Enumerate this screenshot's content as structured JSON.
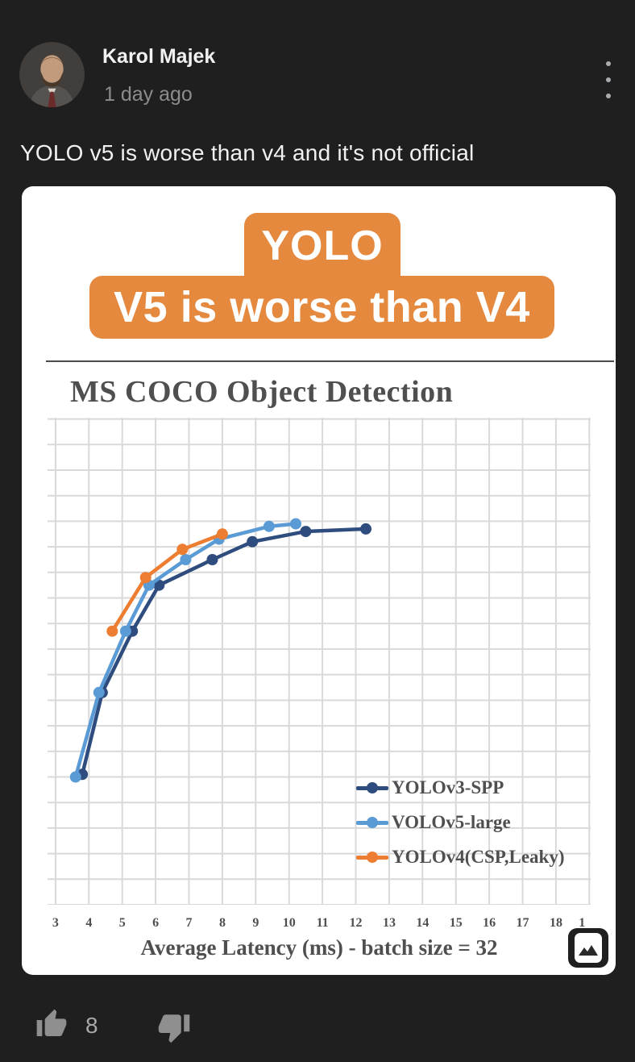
{
  "post": {
    "author": "Karol Majek",
    "timestamp": "1 day ago",
    "text": "YOLO v5 is worse than v4 and it's not official",
    "like_count": "8",
    "icons": {
      "avatar": "avatar-photo",
      "menu": "kebab-menu-icon",
      "like": "thumb-up-icon",
      "dislike": "thumb-down-icon",
      "image_badge": "image-badge-icon"
    }
  },
  "image_card": {
    "banner_line1": "YOLO",
    "banner_line2": "V5 is worse than V4",
    "banner_color": "#E5893F"
  },
  "chart_data": {
    "type": "line",
    "title": "MS COCO Object Detection",
    "xlabel": "Average Latency (ms) - batch size = 32",
    "ylabel": "",
    "y_axis_note": "y-axis labels are cropped out of the image; y values given in unlabeled gridline units above the x-axis",
    "grid": true,
    "grid_color": "#d9d9d9",
    "legend_position": "lower right",
    "xlim": [
      2.76,
      19.04
    ],
    "ylim": [
      0,
      19.05
    ],
    "x_ticks": [
      {
        "label": "3",
        "x": 3
      },
      {
        "label": "4",
        "x": 4
      },
      {
        "label": "5",
        "x": 5
      },
      {
        "label": "6",
        "x": 6
      },
      {
        "label": "7",
        "x": 7
      },
      {
        "label": "8",
        "x": 8
      },
      {
        "label": "9",
        "x": 9
      },
      {
        "label": "10",
        "x": 10
      },
      {
        "label": "11",
        "x": 11
      },
      {
        "label": "12",
        "x": 12
      },
      {
        "label": "13",
        "x": 13
      },
      {
        "label": "14",
        "x": 14
      },
      {
        "label": "15",
        "x": 15
      },
      {
        "label": "16",
        "x": 16
      },
      {
        "label": "17",
        "x": 17
      },
      {
        "label": "18",
        "x": 18
      },
      {
        "label": "1",
        "x": 18.78
      }
    ],
    "series": [
      {
        "name": "YOLOv3-SPP",
        "color": "#2E4D7E",
        "points": [
          [
            3.8,
            5.1
          ],
          [
            4.4,
            8.3
          ],
          [
            5.3,
            10.7
          ],
          [
            6.1,
            12.5
          ],
          [
            7.7,
            13.5
          ],
          [
            8.9,
            14.2
          ],
          [
            10.5,
            14.6
          ],
          [
            12.3,
            14.7
          ]
        ]
      },
      {
        "name": "VOLOv5-large",
        "color": "#5B9BD5",
        "points": [
          [
            3.6,
            5.0
          ],
          [
            4.3,
            8.3
          ],
          [
            5.1,
            10.7
          ],
          [
            5.8,
            12.5
          ],
          [
            6.9,
            13.5
          ],
          [
            7.9,
            14.3
          ],
          [
            9.4,
            14.8
          ],
          [
            10.2,
            14.9
          ]
        ]
      },
      {
        "name": "YOLOv4(CSP,Leaky)",
        "color": "#ED7D31",
        "points": [
          [
            4.7,
            10.7
          ],
          [
            5.7,
            12.8
          ],
          [
            6.8,
            13.9
          ],
          [
            8.0,
            14.5
          ]
        ]
      }
    ]
  }
}
